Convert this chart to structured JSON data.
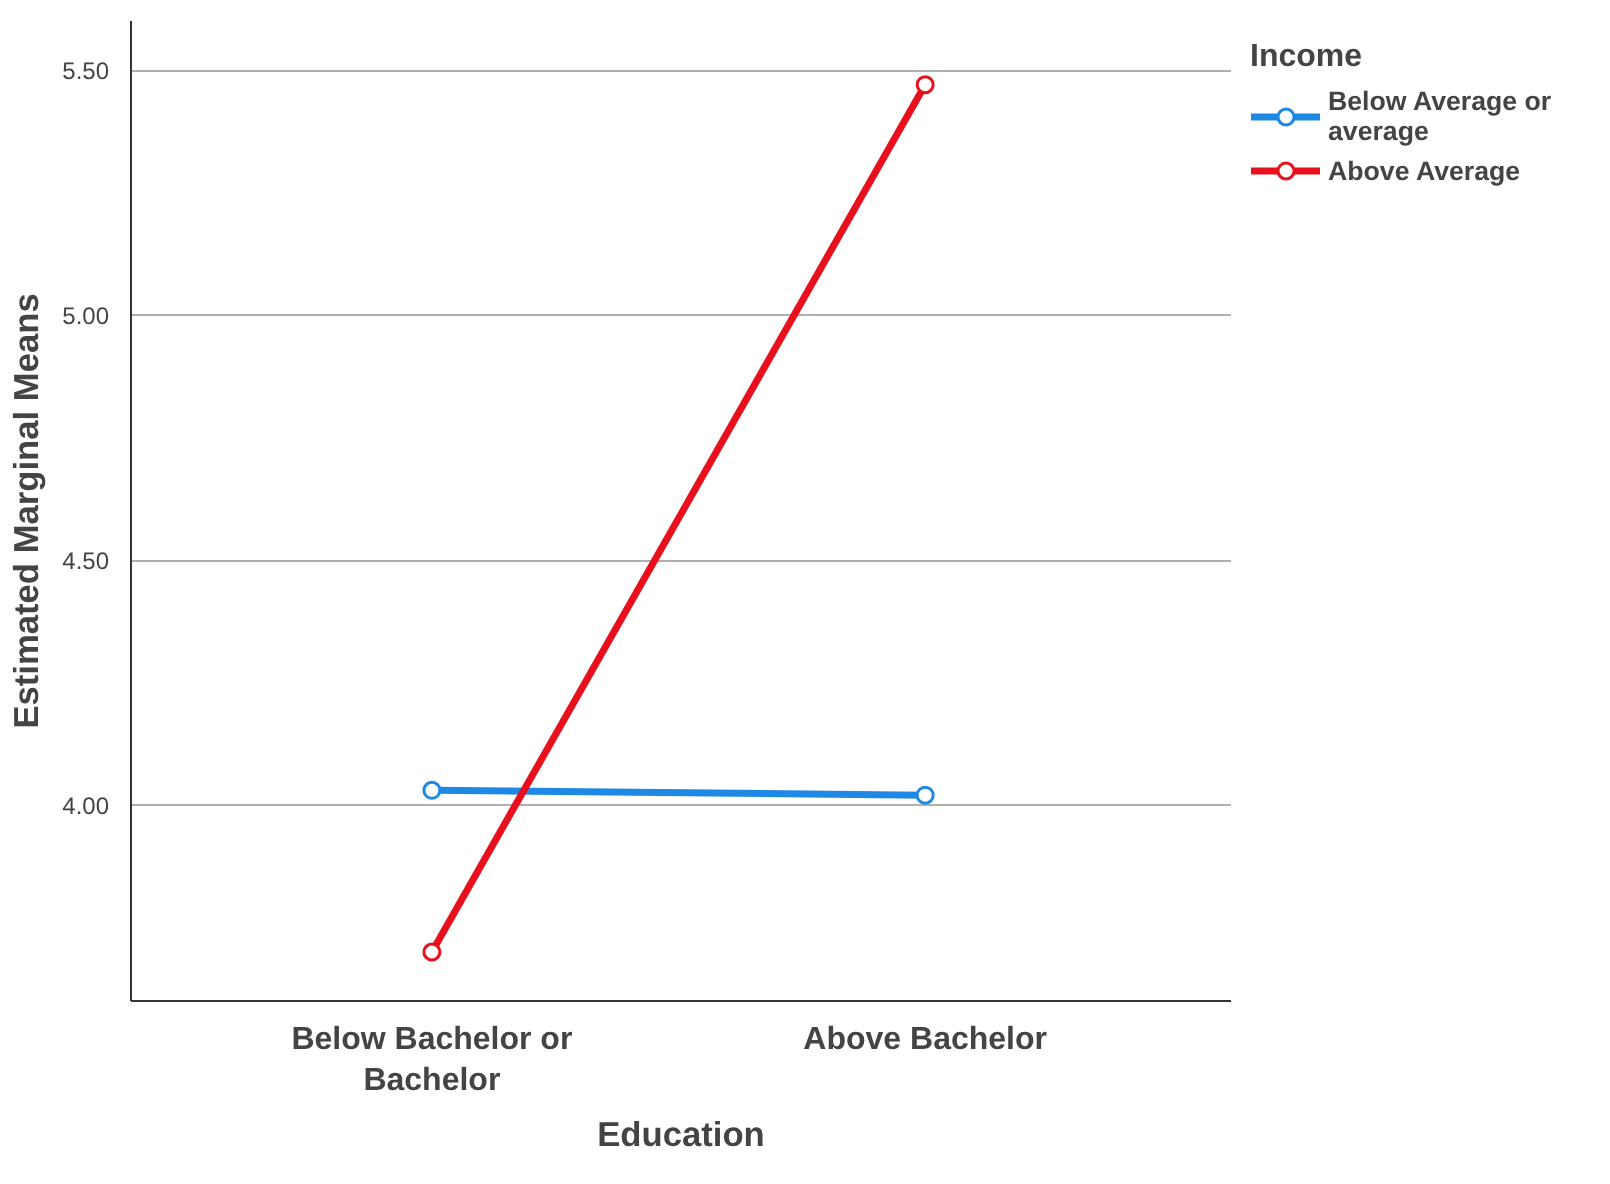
{
  "chart_data": {
    "type": "line",
    "xlabel": "Education",
    "ylabel": "Estimated Marginal Means",
    "legend_title": "Income",
    "categories": [
      "Below Bachelor or Bachelor",
      "Above Bachelor"
    ],
    "series": [
      {
        "name": "Below Average or average",
        "color": "#1e88e5",
        "values": [
          4.03,
          4.02
        ]
      },
      {
        "name": "Above Average",
        "color": "#e8101c",
        "values": [
          3.7,
          5.47
        ]
      }
    ],
    "ylim": [
      3.6,
      5.6
    ],
    "yticks": [
      {
        "value": 4.0,
        "label": "4.00"
      },
      {
        "value": 4.5,
        "label": "4.50"
      },
      {
        "value": 5.0,
        "label": "5.00"
      },
      {
        "value": 5.5,
        "label": "5.50"
      }
    ],
    "grid": "y",
    "legend": "top right",
    "marker": "circle",
    "line_style": "solid"
  }
}
